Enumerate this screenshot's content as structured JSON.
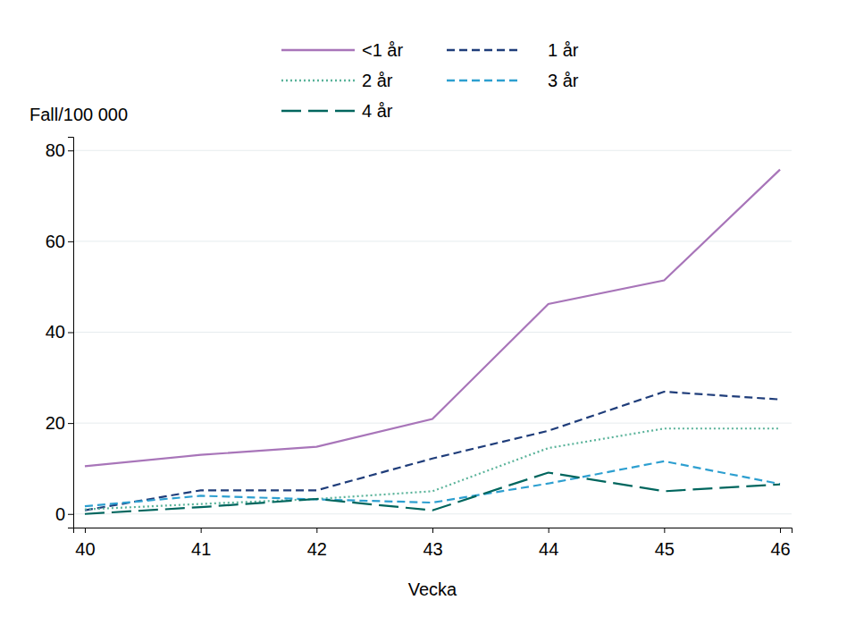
{
  "chart_data": {
    "type": "line",
    "x_label": "Vecka",
    "y_label": "Fall/100 000",
    "x": [
      40,
      41,
      42,
      43,
      44,
      45,
      46
    ],
    "xlim": [
      39.9,
      46.1
    ],
    "xticks": [
      40,
      41,
      42,
      43,
      44,
      45,
      46
    ],
    "ylim": [
      -3,
      83
    ],
    "yticks": [
      0,
      20,
      40,
      60,
      80
    ],
    "grid": true,
    "legend": "top",
    "series": [
      {
        "name": "<1 år",
        "color": "#a875b9",
        "line_style": "solid",
        "values": [
          10.5,
          13.0,
          14.8,
          20.9,
          46.2,
          51.4,
          75.8
        ]
      },
      {
        "name": "1 år",
        "color": "#1f3d7a",
        "line_style": "dashed",
        "values": [
          0.8,
          5.2,
          5.2,
          12.2,
          18.3,
          26.9,
          25.2
        ]
      },
      {
        "name": "2 år",
        "color": "#5ab39a",
        "line_style": "dotted",
        "values": [
          1.0,
          2.2,
          3.3,
          5.0,
          14.5,
          18.8,
          18.8
        ]
      },
      {
        "name": "3 år",
        "color": "#2d9fd0",
        "line_style": "dashed",
        "values": [
          1.7,
          4.0,
          3.2,
          2.5,
          6.7,
          11.6,
          6.6
        ]
      },
      {
        "name": "4 år",
        "color": "#00665e",
        "line_style": "longdash",
        "values": [
          0.0,
          1.5,
          3.3,
          0.8,
          9.1,
          5.0,
          6.5
        ]
      }
    ]
  }
}
